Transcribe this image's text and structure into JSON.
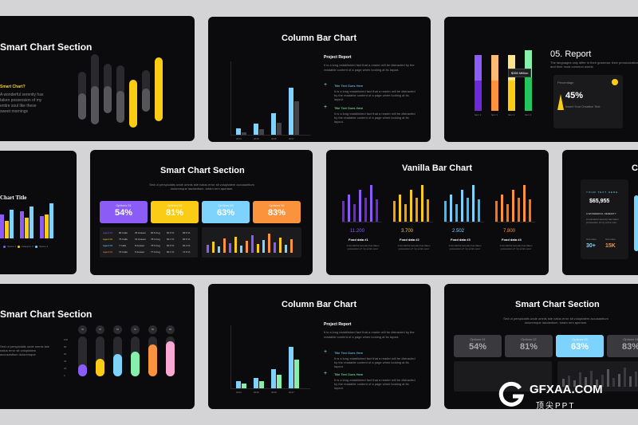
{
  "slides": {
    "s1": {
      "title": "Smart Chart  Section",
      "subtitle": "Smart Chart?",
      "body": "A wonderful serenity has taken possession of my entire soul like these sweet mornings"
    },
    "s2": {
      "title": "Column Bar Chart",
      "side_heading": "Project Report",
      "side_body": "It is a long established fact that a reader will be distracted by the readable content of a page when looking at its layout.",
      "item1_title": "Title Text Goes Here",
      "item1_body": "It is a long established fact that a reader will be distracted by the readable content of a page when looking at its layout.",
      "item2_title": "Title Text Goes Here",
      "item2_body": "It is a long established fact that a reader will be distracted by the readable content of a page when looking at its layout.",
      "years": [
        "2014",
        "2015",
        "2016",
        "2017"
      ]
    },
    "s3": {
      "title": "05. Report",
      "body": "The languages only differ in their grammar, their pronunciation and their most common words.",
      "tooltip": "$350 Million",
      "percentage_label": "Percentage",
      "percentage_value": "45%",
      "insert_text": "Insert Your Creative Text",
      "bar_labels": [
        "Item 1",
        "Item 2",
        "Item 3",
        "Item 4"
      ]
    },
    "s4": {
      "title": "Chart Title",
      "legend": [
        "Series 1",
        "Series 2",
        "Category 3",
        "Series 4"
      ]
    },
    "s5": {
      "title": "Smart Chart Section",
      "body": "Sed ut perspiciatis unde omnis iste natus error sit voluptatem accusantium doloremque laudantium, totam rem aperiam.",
      "cards": [
        {
          "label": "Options 01",
          "value": "54%",
          "color": "#8b5cf6"
        },
        {
          "label": "Options 02",
          "value": "81%",
          "color": "#facc15"
        },
        {
          "label": "Options 03",
          "value": "63%",
          "color": "#7dd3fc"
        },
        {
          "label": "Options 04",
          "value": "83%",
          "color": "#fb923c"
        }
      ],
      "table_rows": [
        [
          "Agent 01",
          "80 Calls",
          "25 Answer",
          "82.5 Avg",
          "81.5 %",
          "83.5 %"
        ],
        [
          "Agent 02",
          "75 Calls",
          "15 Answer",
          "78.3 Avg",
          "82.1 %",
          "82.5 %"
        ],
        [
          "Agent 03",
          "7 Calls",
          "8 Answer",
          "75.5 Avg",
          "81.5 %",
          "81.4 %"
        ],
        [
          "Agent 04",
          "70 Calls",
          "5 Answer",
          "77.9 Avg",
          "80.1 %",
          "71.5 %"
        ]
      ]
    },
    "s6": {
      "title": "Vanilla Bar Chart",
      "items": [
        {
          "value": "11.200",
          "label": "Food data #1",
          "body": "A wonderful serenity has taken possession of my entire soul."
        },
        {
          "value": "3.700",
          "label": "Food data #2",
          "body": "A wonderful serenity has taken possession of my entire soul."
        },
        {
          "value": "2.502",
          "label": "Food data #3",
          "body": "A wonderful serenity has taken possession of my entire soul."
        },
        {
          "value": "7.800",
          "label": "Food data #4",
          "body": "A wonderful serenity has taken possession of my entire soul."
        }
      ]
    },
    "s7": {
      "title": "C",
      "box_title": "YOUR TEXT HERE",
      "amount": "$65,955",
      "box_sub": "A WONDERFUL SERENITY",
      "box_body": "A wonderful serenity has taken possession of my entire soul.",
      "t1_label": "Text Here",
      "t1_value": "30+",
      "t2_label": "Text Here",
      "t2_value": "15K"
    },
    "s8": {
      "title": "Smart Chart  Section",
      "body": "Sed ut perspiciatis unde omnis iste natus error sit voluptatem accusantium doloremque",
      "badges": [
        "30",
        "45",
        "56",
        "62",
        "80",
        "88"
      ],
      "y_ticks": [
        "100",
        "80",
        "60",
        "40",
        "20",
        "0"
      ]
    },
    "s9": {
      "title": "Column Bar Chart",
      "side_heading": "Project Report",
      "side_body": "It is a long established fact that a reader will be distracted by the readable content of a page when looking at its layout.",
      "item1_title": "Title Text Goes Here",
      "item1_body": "It is a long established fact that a reader will be distracted by the readable content of a page when looking at its layout.",
      "item2_title": "Title Text Goes Here",
      "item2_body": "It is a long established fact that a reader will be distracted by the readable content of a page when looking at its layout.",
      "years": [
        "2014",
        "2015",
        "2016",
        "2017"
      ]
    },
    "s10": {
      "title": "Smart Chart Section",
      "body": "Sed ut perspiciatis unde omnis iste natus error sit voluptatem accusantium doloremque laudantium, totam rem aperiam.",
      "cards": [
        {
          "label": "Options 01",
          "value": "54%"
        },
        {
          "label": "Options 02",
          "value": "81%"
        },
        {
          "label": "Options 03",
          "value": "63%"
        },
        {
          "label": "Options 04",
          "value": "83%"
        }
      ]
    }
  },
  "watermark": {
    "brand": "GFXAA.COM",
    "sub": "顶尖PPT"
  },
  "colors": {
    "purple": "#8b5cf6",
    "yellow": "#facc15",
    "blue": "#7dd3fc",
    "orange": "#fb923c",
    "green": "#86efac",
    "pink": "#f9a8d4",
    "grey": "#3a3a3e"
  }
}
